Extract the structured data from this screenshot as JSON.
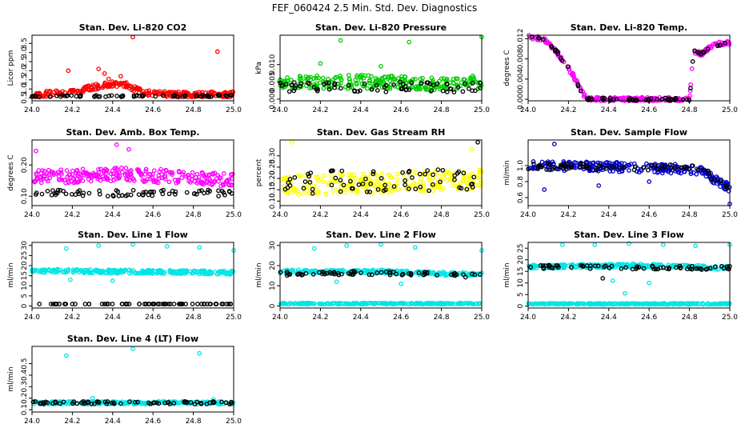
{
  "figure_title": "FEF_060424  2.5 Min. Std. Dev. Diagnostics",
  "chart_data": [
    {
      "type": "scatter",
      "title": "Stan. Dev. Li-820 CO2",
      "ylabel": "Licor ppm",
      "xlabel": "",
      "xlim": [
        24.0,
        25.0
      ],
      "ylim": [
        0.35,
        3.95
      ],
      "xticks": [
        "24.0",
        "24.2",
        "24.4",
        "24.6",
        "24.8",
        "25.0"
      ],
      "yticks": [
        "0.5",
        "1.0",
        "1.5",
        "2.0",
        "2.5",
        "3.0",
        "3.5"
      ],
      "series": [
        {
          "name": "primary",
          "color": "#ff0000",
          "spread": 0.15,
          "seed": 11,
          "profile": [
            [
              24.0,
              0.7
            ],
            [
              24.1,
              0.75
            ],
            [
              24.25,
              0.95
            ],
            [
              24.35,
              1.2
            ],
            [
              24.45,
              1.3
            ],
            [
              24.55,
              0.8
            ],
            [
              24.7,
              0.7
            ],
            [
              25.0,
              0.7
            ]
          ],
          "outliers": [
            [
              24.18,
              2.0
            ],
            [
              24.33,
              2.1
            ],
            [
              24.36,
              1.85
            ],
            [
              24.5,
              3.85
            ],
            [
              24.92,
              3.05
            ],
            [
              24.44,
              1.7
            ],
            [
              24.38,
              1.55
            ]
          ]
        },
        {
          "name": "reference",
          "color": "#000000",
          "spread": 0.05,
          "seed": 12,
          "profile": [
            [
              24.0,
              0.6
            ],
            [
              25.0,
              0.62
            ]
          ],
          "outliers": []
        }
      ]
    },
    {
      "type": "scatter",
      "title": "Stan. Dev. Li-820 Pressure",
      "ylabel": "kPa",
      "xlabel": "",
      "xlim": [
        24.0,
        25.0
      ],
      "ylim": [
        -0.0005,
        0.0185
      ],
      "xticks": [
        "24.0",
        "24.2",
        "24.4",
        "24.6",
        "24.8",
        "25.0"
      ],
      "yticks": [
        "0.000",
        "0.005",
        "0.010"
      ],
      "series": [
        {
          "name": "primary",
          "color": "#00cc00",
          "spread": 0.002,
          "seed": 21,
          "profile": [
            [
              24.0,
              0.005
            ],
            [
              24.5,
              0.005
            ],
            [
              24.8,
              0.004
            ],
            [
              25.0,
              0.005
            ]
          ],
          "outliers": [
            [
              24.3,
              0.017
            ],
            [
              24.64,
              0.0165
            ],
            [
              25.0,
              0.018
            ],
            [
              24.2,
              0.0103
            ],
            [
              24.5,
              0.0095
            ]
          ]
        },
        {
          "name": "reference",
          "color": "#000000",
          "spread": 0.0015,
          "seed": 22,
          "profile": [
            [
              24.0,
              0.0035
            ],
            [
              25.0,
              0.0035
            ]
          ],
          "outliers": []
        }
      ]
    },
    {
      "type": "scatter",
      "title": "Stan. Dev. Li-820 Temp.",
      "ylabel": "degrees C",
      "xlabel": "",
      "xlim": [
        24.0,
        25.0
      ],
      "ylim": [
        -0.0003,
        0.0127
      ],
      "xticks": [
        "24.0",
        "24.2",
        "24.4",
        "24.6",
        "24.8",
        "25.0"
      ],
      "yticks": [
        "0.000",
        "0.004",
        "0.008",
        "0.012"
      ],
      "series": [
        {
          "name": "primary",
          "color": "#ff00ff",
          "spread": 0.0004,
          "seed": 31,
          "profile": [
            [
              24.0,
              0.0125
            ],
            [
              24.08,
              0.0118
            ],
            [
              24.15,
              0.009
            ],
            [
              24.22,
              0.005
            ],
            [
              24.28,
              0.0005
            ],
            [
              24.29,
              0.0
            ],
            [
              24.8,
              0.0
            ],
            [
              24.82,
              0.0095
            ],
            [
              24.86,
              0.009
            ],
            [
              24.92,
              0.0108
            ],
            [
              25.0,
              0.0112
            ]
          ],
          "outliers": []
        },
        {
          "name": "reference",
          "color": "#000000",
          "spread": 0.0003,
          "seed": 32,
          "profile": [
            [
              24.0,
              0.0125
            ],
            [
              24.08,
              0.0118
            ],
            [
              24.15,
              0.009
            ],
            [
              24.22,
              0.005
            ],
            [
              24.28,
              0.0005
            ],
            [
              24.29,
              0.0
            ],
            [
              24.8,
              0.0
            ],
            [
              24.82,
              0.0095
            ],
            [
              24.86,
              0.009
            ],
            [
              24.92,
              0.0108
            ],
            [
              25.0,
              0.0112
            ]
          ],
          "outliers": []
        }
      ]
    },
    {
      "type": "scatter",
      "title": "Stan. Dev. Amb. Box Temp.",
      "ylabel": "degrees C",
      "xlabel": "",
      "xlim": [
        24.0,
        25.0
      ],
      "ylim": [
        0.07,
        0.28
      ],
      "xticks": [
        "24.0",
        "24.2",
        "24.4",
        "24.6",
        "24.8",
        "25.0"
      ],
      "yticks": [
        "0.10",
        "0.20"
      ],
      "series": [
        {
          "name": "primary",
          "color": "#ff00ff",
          "spread": 0.022,
          "seed": 41,
          "profile": [
            [
              24.0,
              0.16
            ],
            [
              24.5,
              0.17
            ],
            [
              25.0,
              0.15
            ]
          ],
          "outliers": [
            [
              24.42,
              0.265
            ],
            [
              24.48,
              0.25
            ],
            [
              24.02,
              0.245
            ]
          ]
        },
        {
          "name": "reference",
          "color": "#000000",
          "spread": 0.01,
          "seed": 42,
          "profile": [
            [
              24.0,
              0.11
            ],
            [
              25.0,
              0.11
            ]
          ],
          "outliers": []
        }
      ]
    },
    {
      "type": "scatter",
      "title": "Stan. Dev. Gas Stream RH",
      "ylabel": "percent",
      "xlabel": "",
      "xlim": [
        24.0,
        25.0
      ],
      "ylim": [
        0.08,
        0.37
      ],
      "xticks": [
        "24.0",
        "24.2",
        "24.4",
        "24.6",
        "24.8",
        "25.0"
      ],
      "yticks": [
        "0.10",
        "0.15",
        "0.20",
        "0.25",
        "0.30"
      ],
      "series": [
        {
          "name": "primary",
          "color": "#ffff00",
          "spread": 0.045,
          "seed": 51,
          "profile": [
            [
              24.0,
              0.17
            ],
            [
              24.5,
              0.18
            ],
            [
              25.0,
              0.2
            ]
          ],
          "outliers": [
            [
              24.06,
              0.36
            ],
            [
              24.95,
              0.33
            ]
          ]
        },
        {
          "name": "reference",
          "color": "#000000",
          "spread": 0.05,
          "seed": 52,
          "profile": [
            [
              24.0,
              0.18
            ],
            [
              25.0,
              0.2
            ]
          ],
          "outliers": [
            [
              24.98,
              0.36
            ]
          ]
        }
      ]
    },
    {
      "type": "scatter",
      "title": "Stan. Dev. Sample Flow",
      "ylabel": "ml/min",
      "xlabel": "",
      "xlim": [
        24.0,
        25.0
      ],
      "ylim": [
        0.5,
        1.32
      ],
      "xticks": [
        "24.0",
        "24.2",
        "24.4",
        "24.6",
        "24.8",
        "25.0"
      ],
      "yticks": [
        "0.6",
        "0.8",
        "1.0"
      ],
      "series": [
        {
          "name": "primary",
          "color": "#0000cc",
          "spread": 0.06,
          "seed": 61,
          "profile": [
            [
              24.0,
              1.0
            ],
            [
              24.5,
              0.98
            ],
            [
              24.85,
              0.95
            ],
            [
              24.95,
              0.78
            ],
            [
              25.0,
              0.72
            ]
          ],
          "outliers": [
            [
              24.08,
              0.7
            ],
            [
              24.13,
              1.27
            ],
            [
              24.35,
              0.75
            ],
            [
              24.6,
              0.8
            ],
            [
              25.0,
              0.52
            ]
          ]
        },
        {
          "name": "reference",
          "color": "#000000",
          "spread": 0.04,
          "seed": 62,
          "profile": [
            [
              24.0,
              0.99
            ],
            [
              24.85,
              0.97
            ],
            [
              24.95,
              0.8
            ],
            [
              25.0,
              0.72
            ]
          ],
          "outliers": []
        }
      ]
    },
    {
      "type": "scatter",
      "title": "Stan. Dev. Line 1 Flow",
      "ylabel": "ml/min",
      "xlabel": "",
      "xlim": [
        24.0,
        25.0
      ],
      "ylim": [
        -1.0,
        31.5
      ],
      "xticks": [
        "24.0",
        "24.2",
        "24.4",
        "24.6",
        "24.8",
        "25.0"
      ],
      "yticks": [
        "0",
        "5",
        "10",
        "15",
        "20",
        "25",
        "30"
      ],
      "series": [
        {
          "name": "primary",
          "color": "#00e5e5",
          "spread": 0.9,
          "seed": 71,
          "profile": [
            [
              24.0,
              17.5
            ],
            [
              24.5,
              17.0
            ],
            [
              25.0,
              16.5
            ]
          ],
          "outliers": [
            [
              24.17,
              28.5
            ],
            [
              24.33,
              30.0
            ],
            [
              24.5,
              30.5
            ],
            [
              24.67,
              29.5
            ],
            [
              24.83,
              29.0
            ],
            [
              25.0,
              27.5
            ],
            [
              24.4,
              12.5
            ],
            [
              24.19,
              13.0
            ]
          ]
        },
        {
          "name": "reference",
          "color": "#000000",
          "spread": 0.0,
          "seed": 72,
          "profile": [
            [
              24.0,
              1.0
            ],
            [
              25.0,
              1.0
            ]
          ],
          "outliers": []
        }
      ]
    },
    {
      "type": "scatter",
      "title": "Stan. Dev. Line 2 Flow",
      "ylabel": "ml/min",
      "xlabel": "",
      "xlim": [
        24.0,
        25.0
      ],
      "ylim": [
        -1.0,
        31.5
      ],
      "xticks": [
        "24.0",
        "24.2",
        "24.4",
        "24.6",
        "24.8",
        "25.0"
      ],
      "yticks": [
        "0",
        "10",
        "20",
        "30"
      ],
      "series": [
        {
          "name": "primary",
          "color": "#00e5e5",
          "spread": 0.9,
          "seed": 81,
          "profile": [
            [
              24.0,
              17.0
            ],
            [
              24.5,
              17.0
            ],
            [
              24.8,
              16.0
            ],
            [
              25.0,
              15.5
            ]
          ],
          "outliers": [
            [
              24.17,
              28.5
            ],
            [
              24.33,
              30.0
            ],
            [
              24.5,
              30.5
            ],
            [
              24.67,
              29.0
            ],
            [
              25.0,
              27.5
            ],
            [
              24.28,
              12.0
            ],
            [
              24.6,
              11.0
            ]
          ]
        },
        {
          "name": "primary-low",
          "color": "#00e5e5",
          "spread": 0.3,
          "seed": 83,
          "profile": [
            [
              24.0,
              1.2
            ],
            [
              25.0,
              1.2
            ]
          ],
          "outliers": []
        },
        {
          "name": "reference",
          "color": "#000000",
          "spread": 1.0,
          "seed": 82,
          "profile": [
            [
              24.0,
              16.0
            ],
            [
              24.5,
              16.5
            ],
            [
              24.8,
              15.5
            ],
            [
              25.0,
              15.0
            ]
          ],
          "outliers": []
        }
      ]
    },
    {
      "type": "scatter",
      "title": "Stan. Dev. Line 3 Flow",
      "ylabel": "ml/min",
      "xlabel": "",
      "xlim": [
        24.0,
        25.0
      ],
      "ylim": [
        -0.8,
        27.5
      ],
      "xticks": [
        "24.0",
        "24.2",
        "24.4",
        "24.6",
        "24.8",
        "25.0"
      ],
      "yticks": [
        "0",
        "5",
        "10",
        "15",
        "20",
        "25"
      ],
      "series": [
        {
          "name": "primary",
          "color": "#00e5e5",
          "spread": 0.8,
          "seed": 91,
          "profile": [
            [
              24.0,
              17.0
            ],
            [
              24.5,
              17.5
            ],
            [
              25.0,
              16.5
            ]
          ],
          "outliers": [
            [
              24.17,
              26.5
            ],
            [
              24.33,
              26.5
            ],
            [
              24.5,
              27.0
            ],
            [
              24.67,
              26.5
            ],
            [
              24.83,
              26.0
            ],
            [
              25.0,
              26.5
            ],
            [
              24.48,
              5.5
            ],
            [
              24.42,
              11.0
            ],
            [
              24.6,
              10.0
            ]
          ]
        },
        {
          "name": "primary-low",
          "color": "#00e5e5",
          "spread": 0.25,
          "seed": 93,
          "profile": [
            [
              24.0,
              1.0
            ],
            [
              25.0,
              1.0
            ]
          ],
          "outliers": []
        },
        {
          "name": "reference",
          "color": "#000000",
          "spread": 0.8,
          "seed": 92,
          "profile": [
            [
              24.0,
              17.0
            ],
            [
              25.0,
              16.5
            ]
          ],
          "outliers": [
            [
              24.37,
              12.0
            ]
          ]
        }
      ]
    },
    {
      "type": "scatter",
      "title": "Stan. Dev. Line 4 (LT) Flow",
      "ylabel": "ml/min",
      "xlabel": "",
      "xlim": [
        24.0,
        25.0
      ],
      "ylim": [
        0.08,
        0.65
      ],
      "xticks": [
        "24.0",
        "24.2",
        "24.4",
        "24.6",
        "24.8",
        "25.0"
      ],
      "yticks": [
        "0.1",
        "0.2",
        "0.3",
        "0.4",
        "0.5"
      ],
      "series": [
        {
          "name": "primary",
          "color": "#00e5e5",
          "spread": 0.012,
          "seed": 101,
          "profile": [
            [
              24.0,
              0.16
            ],
            [
              25.0,
              0.16
            ]
          ],
          "outliers": [
            [
              24.17,
              0.57
            ],
            [
              24.5,
              0.63
            ],
            [
              24.83,
              0.59
            ],
            [
              24.3,
              0.2
            ],
            [
              24.9,
              0.19
            ]
          ]
        },
        {
          "name": "reference",
          "color": "#000000",
          "spread": 0.012,
          "seed": 102,
          "profile": [
            [
              24.0,
              0.16
            ],
            [
              25.0,
              0.16
            ]
          ],
          "outliers": []
        }
      ]
    }
  ]
}
